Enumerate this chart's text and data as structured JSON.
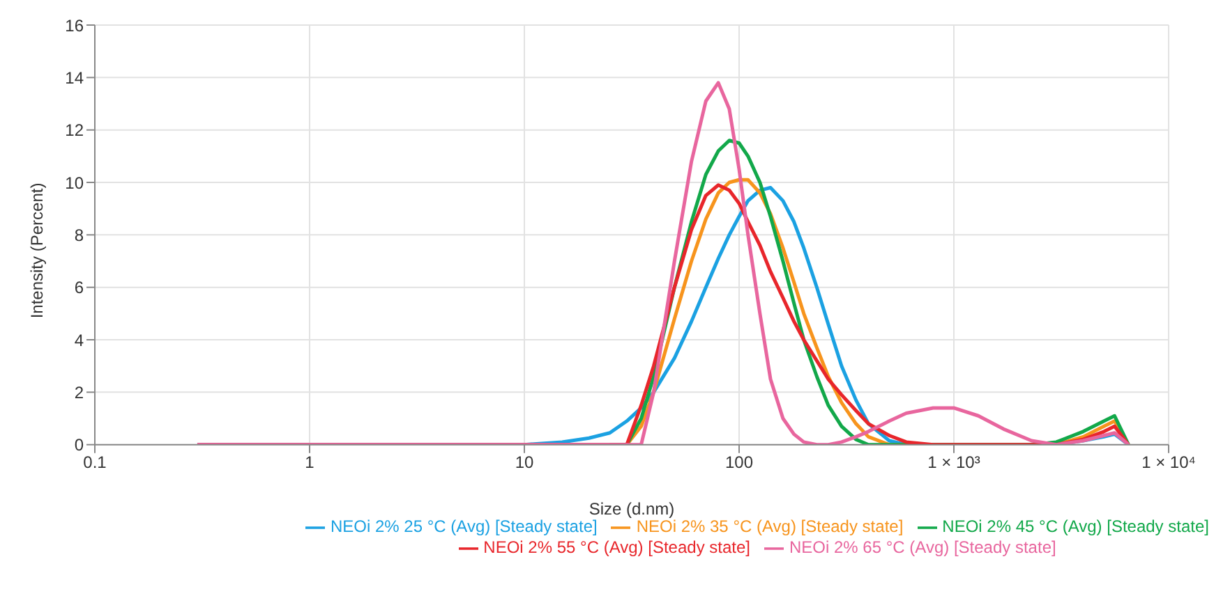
{
  "chart_data": {
    "type": "line",
    "xlabel": "Size (d.nm)",
    "ylabel": "Intensity (Percent)",
    "log": "x",
    "x": [
      0.3,
      1,
      10,
      15,
      20,
      25,
      30,
      35,
      40,
      50,
      60,
      70,
      80,
      90,
      100,
      110,
      125,
      140,
      160,
      180,
      200,
      230,
      260,
      300,
      350,
      400,
      500,
      600,
      800,
      1000,
      1300,
      1700,
      2300,
      3000,
      4000,
      5000,
      5600,
      6500
    ],
    "series": [
      {
        "name": "NEOi 2% 25 °C (Avg) [Steady state]",
        "color": "#1ba1e2",
        "values": [
          0,
          0,
          0,
          0.1,
          0.25,
          0.45,
          0.9,
          1.4,
          2,
          3.3,
          4.7,
          6,
          7.1,
          8,
          8.7,
          9.3,
          9.7,
          9.8,
          9.3,
          8.5,
          7.5,
          6,
          4.6,
          3,
          1.7,
          0.8,
          0.15,
          0,
          0,
          0,
          0,
          0,
          0,
          0,
          0.15,
          0.3,
          0.4,
          0
        ]
      },
      {
        "name": "NEOi 2% 35 °C (Avg) [Steady state]",
        "color": "#f7941d",
        "values": [
          null,
          null,
          null,
          null,
          null,
          0,
          0,
          0.7,
          2,
          4.8,
          7,
          8.6,
          9.6,
          10,
          10.1,
          10.1,
          9.6,
          8.8,
          7.5,
          6.2,
          5,
          3.7,
          2.6,
          1.6,
          0.8,
          0.3,
          0,
          0,
          0,
          0,
          0,
          0,
          0,
          0,
          0.3,
          0.7,
          0.9,
          0
        ]
      },
      {
        "name": "NEOi 2% 45 °C (Avg) [Steady state]",
        "color": "#12a84a",
        "values": [
          null,
          null,
          null,
          null,
          null,
          0,
          0,
          1,
          2.6,
          6,
          8.5,
          10.3,
          11.2,
          11.6,
          11.5,
          11,
          10,
          8.7,
          7,
          5.4,
          4,
          2.6,
          1.5,
          0.7,
          0.2,
          0,
          0,
          0,
          0,
          0,
          0,
          0,
          0,
          0.1,
          0.5,
          0.9,
          1.1,
          0
        ]
      },
      {
        "name": "NEOi 2% 55 °C (Avg) [Steady state]",
        "color": "#e8262b",
        "values": [
          0,
          0,
          0,
          0,
          0,
          0,
          0,
          1.5,
          3,
          6,
          8.2,
          9.5,
          9.9,
          9.7,
          9.2,
          8.5,
          7.6,
          6.6,
          5.6,
          4.7,
          4,
          3.2,
          2.5,
          1.9,
          1.3,
          0.8,
          0.35,
          0.1,
          0,
          0,
          0,
          0,
          0,
          0,
          0.2,
          0.5,
          0.7,
          0
        ]
      },
      {
        "name": "NEOi 2% 65 °C (Avg) [Steady state]",
        "color": "#e8669e",
        "values": [
          0,
          0,
          0,
          0,
          0,
          0,
          0,
          0,
          2,
          7,
          10.8,
          13.1,
          13.8,
          12.8,
          10.5,
          8,
          5,
          2.5,
          1,
          0.4,
          0.1,
          0,
          0,
          0.1,
          0.3,
          0.5,
          0.9,
          1.2,
          1.4,
          1.4,
          1.1,
          0.6,
          0.15,
          0,
          0.15,
          0.35,
          0.45,
          0
        ]
      }
    ],
    "xlim": [
      0.1,
      10000
    ],
    "xticks": [
      0.1,
      1,
      10,
      100,
      {
        "value": 1000,
        "label": "1 × 10³"
      },
      {
        "value": 10000,
        "label": "1 × 10⁴"
      }
    ],
    "ylim": [
      0,
      16
    ],
    "yticks": [
      0,
      2,
      4,
      6,
      8,
      10,
      12,
      14,
      16
    ],
    "grid": true,
    "legend": "bottom",
    "marker": "none",
    "line_style": "solid"
  }
}
